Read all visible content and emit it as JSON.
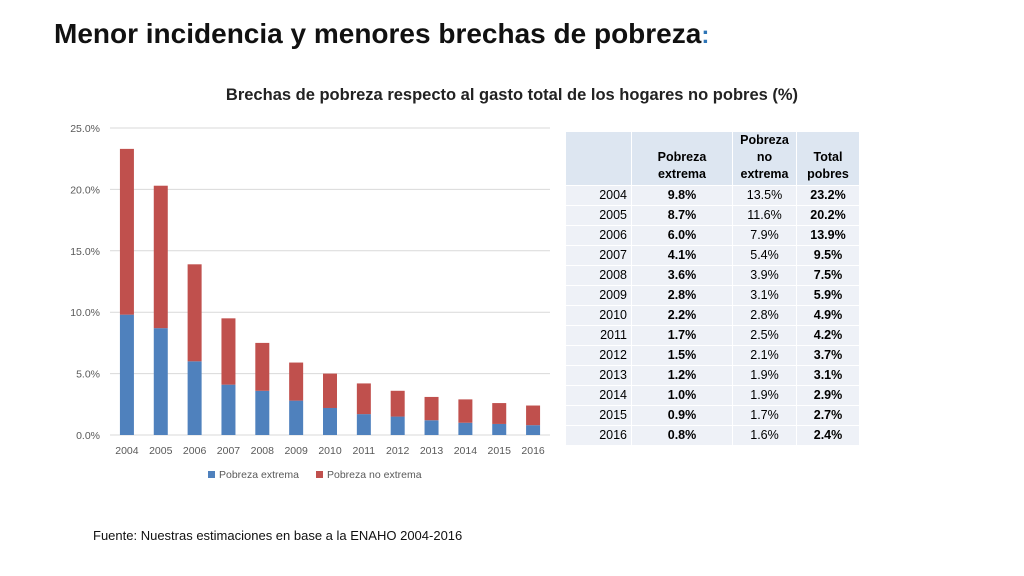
{
  "slide": {
    "title": "Menor incidencia y menores brechas de pobreza",
    "title_punct": ":",
    "source": "Fuente: Nuestras estimaciones en base a la ENAHO 2004-2016"
  },
  "chart_data": {
    "type": "bar",
    "stacked": true,
    "title": "Brechas de pobreza respecto al gasto total de los hogares no pobres (%)",
    "categories": [
      "2004",
      "2005",
      "2006",
      "2007",
      "2008",
      "2009",
      "2010",
      "2011",
      "2012",
      "2013",
      "2014",
      "2015",
      "2016"
    ],
    "series": [
      {
        "name": "Pobreza extrema",
        "color": "#4f81bd",
        "values": [
          9.8,
          8.7,
          6.0,
          4.1,
          3.6,
          2.8,
          2.2,
          1.7,
          1.5,
          1.2,
          1.0,
          0.9,
          0.8
        ]
      },
      {
        "name": "Pobreza no extrema",
        "color": "#c0504d",
        "values": [
          13.5,
          11.6,
          7.9,
          5.4,
          3.9,
          3.1,
          2.8,
          2.5,
          2.1,
          1.9,
          1.9,
          1.7,
          1.6
        ]
      }
    ],
    "ylim": [
      0,
      25
    ],
    "yticks": [
      "0.0%",
      "5.0%",
      "10.0%",
      "15.0%",
      "20.0%",
      "25.0%"
    ],
    "grid": true,
    "legend": "bottom"
  },
  "table": {
    "headers": {
      "year": "",
      "extrema": [
        "Pobreza",
        "extrema"
      ],
      "no_extrema": [
        "Pobreza",
        "no",
        "extrema"
      ],
      "total": [
        "Total",
        "pobres"
      ]
    },
    "rows": [
      [
        "2004",
        "9.8%",
        "13.5%",
        "23.2%"
      ],
      [
        "2005",
        "8.7%",
        "11.6%",
        "20.2%"
      ],
      [
        "2006",
        "6.0%",
        "7.9%",
        "13.9%"
      ],
      [
        "2007",
        "4.1%",
        "5.4%",
        "9.5%"
      ],
      [
        "2008",
        "3.6%",
        "3.9%",
        "7.5%"
      ],
      [
        "2009",
        "2.8%",
        "3.1%",
        "5.9%"
      ],
      [
        "2010",
        "2.2%",
        "2.8%",
        "4.9%"
      ],
      [
        "2011",
        "1.7%",
        "2.5%",
        "4.2%"
      ],
      [
        "2012",
        "1.5%",
        "2.1%",
        "3.7%"
      ],
      [
        "2013",
        "1.2%",
        "1.9%",
        "3.1%"
      ],
      [
        "2014",
        "1.0%",
        "1.9%",
        "2.9%"
      ],
      [
        "2015",
        "0.9%",
        "1.7%",
        "2.7%"
      ],
      [
        "2016",
        "0.8%",
        "1.6%",
        "2.4%"
      ]
    ]
  }
}
